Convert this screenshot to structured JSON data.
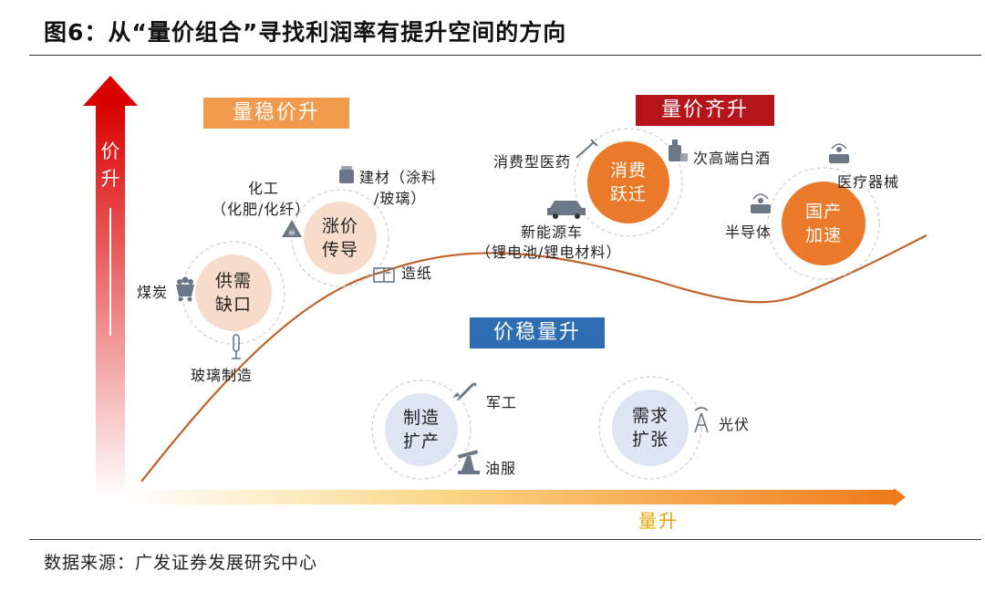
{
  "title": "图6：从“量价组合”寻找利润率有提升空间的方向",
  "source": "数据来源：广发证券发展研究中心",
  "axes": {
    "y_label_1": "价",
    "y_label_2": "升",
    "x_label": "量升"
  },
  "quadrants": {
    "vol_stable_price_up": "量稳价升",
    "vol_price_up": "量价齐升",
    "price_stable_vol_up": "价稳量升"
  },
  "circles": {
    "supply_line1": "供需",
    "supply_line2": "缺口",
    "transmit_line1": "涨价",
    "transmit_line2": "传导",
    "consume_line1": "消费",
    "consume_line2": "跃迁",
    "domestic_line1": "国产",
    "domestic_line2": "加速",
    "manufacture_line1": "制造",
    "manufacture_line2": "扩产",
    "demand_line1": "需求",
    "demand_line2": "扩张"
  },
  "labels": {
    "coal": "煤炭",
    "glass_making": "玻璃制造",
    "chemical": "化工",
    "chemical_sub": "（化肥/化纤）",
    "building_materials": "建材（涂料",
    "building_materials_sub": "/玻璃）",
    "paper": "造纸",
    "consumer_pharma": "消费型医药",
    "liquor": "次高端白酒",
    "nev": "新能源车",
    "nev_sub": "（锂电池/锂电材料）",
    "semiconductor": "半导体",
    "medical_devices": "医疗器械",
    "military": "军工",
    "oil_service": "油服",
    "photovoltaic": "光伏"
  },
  "colors": {
    "orange_tag": "#ef9a4c",
    "red_tag": "#b5141b",
    "blue_tag": "#2f6db3",
    "curve": "#c0622a",
    "peach_circle": "#f8dccb",
    "orange_circle": "#ea7a2a",
    "blue_circle": "#dde5f3"
  }
}
